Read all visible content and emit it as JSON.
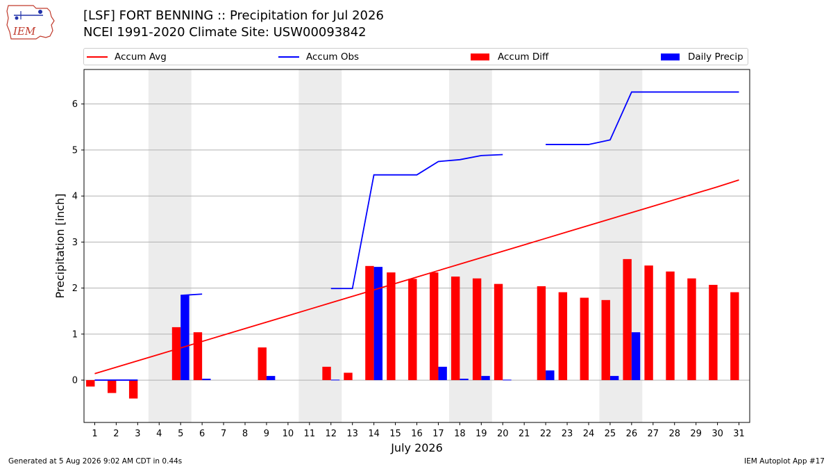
{
  "header": {
    "logo_text": "IEM",
    "title_line1": "[LSF] FORT BENNING :: Precipitation for Jul 2026",
    "title_line2": "NCEI 1991-2020 Climate Site: USW00093842"
  },
  "legend": [
    {
      "label": "Accum Avg",
      "color": "#ff0000",
      "kind": "line"
    },
    {
      "label": "Accum Obs",
      "color": "#0000ff",
      "kind": "line"
    },
    {
      "label": "Accum Diff",
      "color": "#ff0000",
      "kind": "box"
    },
    {
      "label": "Daily Precip",
      "color": "#0000ff",
      "kind": "box"
    }
  ],
  "footer": {
    "left": "Generated at 5 Aug 2026 9:02 AM CDT in 0.44s",
    "right": "IEM Autoplot App #17"
  },
  "chart_data": {
    "type": "bar",
    "title": "[LSF] FORT BENNING :: Precipitation for Jul 2026",
    "subtitle": "NCEI 1991-2020 Climate Site: USW00093842",
    "xlabel": "July 2026",
    "ylabel": "Precipitation [inch]",
    "x": [
      1,
      2,
      3,
      4,
      5,
      6,
      7,
      8,
      9,
      10,
      11,
      12,
      13,
      14,
      15,
      16,
      17,
      18,
      19,
      20,
      21,
      22,
      23,
      24,
      25,
      26,
      27,
      28,
      29,
      30,
      31
    ],
    "xlim": [
      0.5,
      31.5
    ],
    "ylim": [
      -0.92,
      6.75
    ],
    "yticks": [
      0,
      1,
      2,
      3,
      4,
      5,
      6
    ],
    "grid": "horizontal",
    "weekend_shading": [
      [
        3.5,
        5.5
      ],
      [
        10.5,
        12.5
      ],
      [
        17.5,
        19.5
      ],
      [
        24.5,
        26.5
      ]
    ],
    "shading_color": "#ececec",
    "legend_placement": "top",
    "series": [
      {
        "name": "Accum Avg",
        "kind": "line",
        "color": "#ff0000",
        "values": [
          0.14,
          0.28,
          0.42,
          0.56,
          0.7,
          0.84,
          0.98,
          1.12,
          1.26,
          1.4,
          1.54,
          1.68,
          1.82,
          1.96,
          2.1,
          2.24,
          2.38,
          2.52,
          2.66,
          2.8,
          2.94,
          3.08,
          3.22,
          3.36,
          3.5,
          3.64,
          3.78,
          3.92,
          4.06,
          4.2,
          4.35
        ]
      },
      {
        "name": "Accum Obs",
        "kind": "line",
        "color": "#0000ff",
        "values": [
          0.0,
          0.0,
          0.0,
          null,
          1.84,
          1.87,
          null,
          null,
          null,
          null,
          null,
          1.99,
          1.99,
          4.46,
          4.46,
          4.46,
          4.75,
          4.79,
          4.88,
          4.9,
          null,
          5.12,
          5.12,
          5.12,
          5.22,
          6.26,
          6.26,
          6.26,
          6.26,
          6.26,
          6.26
        ]
      },
      {
        "name": "Accum Diff",
        "kind": "bar",
        "color": "#ff0000",
        "values": [
          -0.14,
          -0.28,
          -0.4,
          null,
          1.15,
          1.04,
          null,
          null,
          0.71,
          null,
          null,
          0.29,
          0.16,
          2.48,
          2.34,
          2.2,
          2.34,
          2.25,
          2.21,
          2.09,
          null,
          2.04,
          1.91,
          1.79,
          1.74,
          2.63,
          2.49,
          2.36,
          2.21,
          2.07,
          1.91
        ]
      },
      {
        "name": "Daily Precip",
        "kind": "bar",
        "color": "#0000ff",
        "values": [
          0.0,
          0.0,
          0.0,
          null,
          1.84,
          0.03,
          null,
          null,
          0.09,
          null,
          null,
          0.01,
          null,
          2.46,
          null,
          null,
          0.29,
          0.03,
          0.09,
          0.01,
          null,
          0.21,
          null,
          null,
          0.09,
          1.04,
          null,
          null,
          null,
          null,
          null
        ]
      }
    ]
  }
}
